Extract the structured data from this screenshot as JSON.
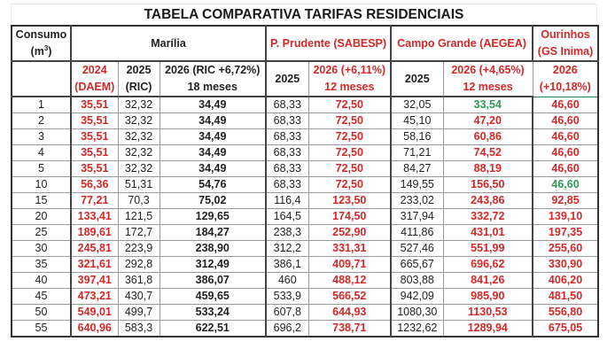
{
  "title": "TABELA COMPARATIVA TARIFAS RESIDENCIAIS",
  "header_top": {
    "consumo": "Consumo",
    "consumo_unit_prefix": "(m",
    "consumo_unit_sup": "3",
    "consumo_unit_suffix": ")",
    "marilia": "Marília",
    "prudente": "P. Prudente (SABESP)",
    "campo_grande": "Campo Grande (AEGEA)",
    "ourinhos_line1": "Ourinhos",
    "ourinhos_line2": "(GS Inima)"
  },
  "header_sub": {
    "marilia_2024_line1": "2024",
    "marilia_2024_line2": "(DAEM)",
    "marilia_2025_line1": "2025",
    "marilia_2025_line2": "(RIC)",
    "marilia_2026_line1": "2026 (RIC +6,72%)",
    "marilia_2026_line2": "18 meses",
    "prudente_2025": "2025",
    "prudente_2026_line1": "2026 (+6,11%)",
    "prudente_2026_line2": "12 meses",
    "cg_2025": "2025",
    "cg_2026_line1": "2026 (+4,65%)",
    "cg_2026_line2": "12 meses",
    "ourinhos_2026_line1": "2026",
    "ourinhos_2026_line2": "(+10,18%)"
  },
  "colors": {
    "red": "#d42828",
    "green": "#2e9a55",
    "text": "#222222"
  },
  "rows": [
    {
      "consumo": "1",
      "m2024": "35,51",
      "m2025": "32,32",
      "m2026": "34,49",
      "pp2025": "68,33",
      "pp2026": "72,50",
      "cg2025": "32,05",
      "cg2026": "33,54",
      "cg2026_color": "green",
      "our2026": "46,60",
      "our2026_color": "red"
    },
    {
      "consumo": "2",
      "m2024": "35,51",
      "m2025": "32,32",
      "m2026": "34,49",
      "pp2025": "68,33",
      "pp2026": "72,50",
      "cg2025": "45,10",
      "cg2026": "47,20",
      "cg2026_color": "red",
      "our2026": "46,60",
      "our2026_color": "red"
    },
    {
      "consumo": "3",
      "m2024": "35,51",
      "m2025": "32,32",
      "m2026": "34,49",
      "pp2025": "68,33",
      "pp2026": "72,50",
      "cg2025": "58,16",
      "cg2026": "60,86",
      "cg2026_color": "red",
      "our2026": "46,60",
      "our2026_color": "red"
    },
    {
      "consumo": "4",
      "m2024": "35,51",
      "m2025": "32,32",
      "m2026": "34,49",
      "pp2025": "68,33",
      "pp2026": "72,50",
      "cg2025": "71,21",
      "cg2026": "74,52",
      "cg2026_color": "red",
      "our2026": "46,60",
      "our2026_color": "red"
    },
    {
      "consumo": "5",
      "m2024": "35,51",
      "m2025": "32,32",
      "m2026": "34,49",
      "pp2025": "68,33",
      "pp2026": "72,50",
      "cg2025": "84,27",
      "cg2026": "88,19",
      "cg2026_color": "red",
      "our2026": "46,60",
      "our2026_color": "red"
    },
    {
      "consumo": "10",
      "m2024": "56,36",
      "m2025": "51,31",
      "m2026": "54,76",
      "pp2025": "68,33",
      "pp2026": "72,50",
      "cg2025": "149,55",
      "cg2026": "156,50",
      "cg2026_color": "red",
      "our2026": "46,60",
      "our2026_color": "green"
    },
    {
      "consumo": "15",
      "m2024": "77,21",
      "m2025": "70,3",
      "m2026": "75,02",
      "pp2025": "116,4",
      "pp2026": "123,50",
      "cg2025": "233,02",
      "cg2026": "243,86",
      "cg2026_color": "red",
      "our2026": "92,85",
      "our2026_color": "red"
    },
    {
      "consumo": "20",
      "m2024": "133,41",
      "m2025": "121,5",
      "m2026": "129,65",
      "pp2025": "164,5",
      "pp2026": "174,50",
      "cg2025": "317,94",
      "cg2026": "332,72",
      "cg2026_color": "red",
      "our2026": "139,10",
      "our2026_color": "red"
    },
    {
      "consumo": "25",
      "m2024": "189,61",
      "m2025": "172,7",
      "m2026": "184,27",
      "pp2025": "238,3",
      "pp2026": "252,90",
      "cg2025": "411,86",
      "cg2026": "431,01",
      "cg2026_color": "red",
      "our2026": "197,35",
      "our2026_color": "red"
    },
    {
      "consumo": "30",
      "m2024": "245,81",
      "m2025": "223,9",
      "m2026": "238,90",
      "pp2025": "312,2",
      "pp2026": "331,31",
      "cg2025": "527,46",
      "cg2026": "551,99",
      "cg2026_color": "red",
      "our2026": "255,60",
      "our2026_color": "red"
    },
    {
      "consumo": "35",
      "m2024": "321,61",
      "m2025": "292,8",
      "m2026": "312,49",
      "pp2025": "386,1",
      "pp2026": "409,71",
      "cg2025": "665,67",
      "cg2026": "696,62",
      "cg2026_color": "red",
      "our2026": "330,90",
      "our2026_color": "red"
    },
    {
      "consumo": "40",
      "m2024": "397,41",
      "m2025": "361,8",
      "m2026": "386,07",
      "pp2025": "460",
      "pp2026": "488,12",
      "cg2025": "803,88",
      "cg2026": "841,26",
      "cg2026_color": "red",
      "our2026": "406,20",
      "our2026_color": "red"
    },
    {
      "consumo": "45",
      "m2024": "473,21",
      "m2025": "430,7",
      "m2026": "459,65",
      "pp2025": "533,9",
      "pp2026": "566,52",
      "cg2025": "942,09",
      "cg2026": "985,90",
      "cg2026_color": "red",
      "our2026": "481,50",
      "our2026_color": "red"
    },
    {
      "consumo": "50",
      "m2024": "549,01",
      "m2025": "499,7",
      "m2026": "533,24",
      "pp2025": "607,8",
      "pp2026": "644,93",
      "cg2025": "1080,30",
      "cg2026": "1130,53",
      "cg2026_color": "red",
      "our2026": "556,80",
      "our2026_color": "red"
    },
    {
      "consumo": "55",
      "m2024": "640,96",
      "m2025": "583,3",
      "m2026": "622,51",
      "pp2025": "696,2",
      "pp2026": "738,71",
      "cg2025": "1232,62",
      "cg2026": "1289,94",
      "cg2026_color": "red",
      "our2026": "675,05",
      "our2026_color": "red"
    }
  ]
}
